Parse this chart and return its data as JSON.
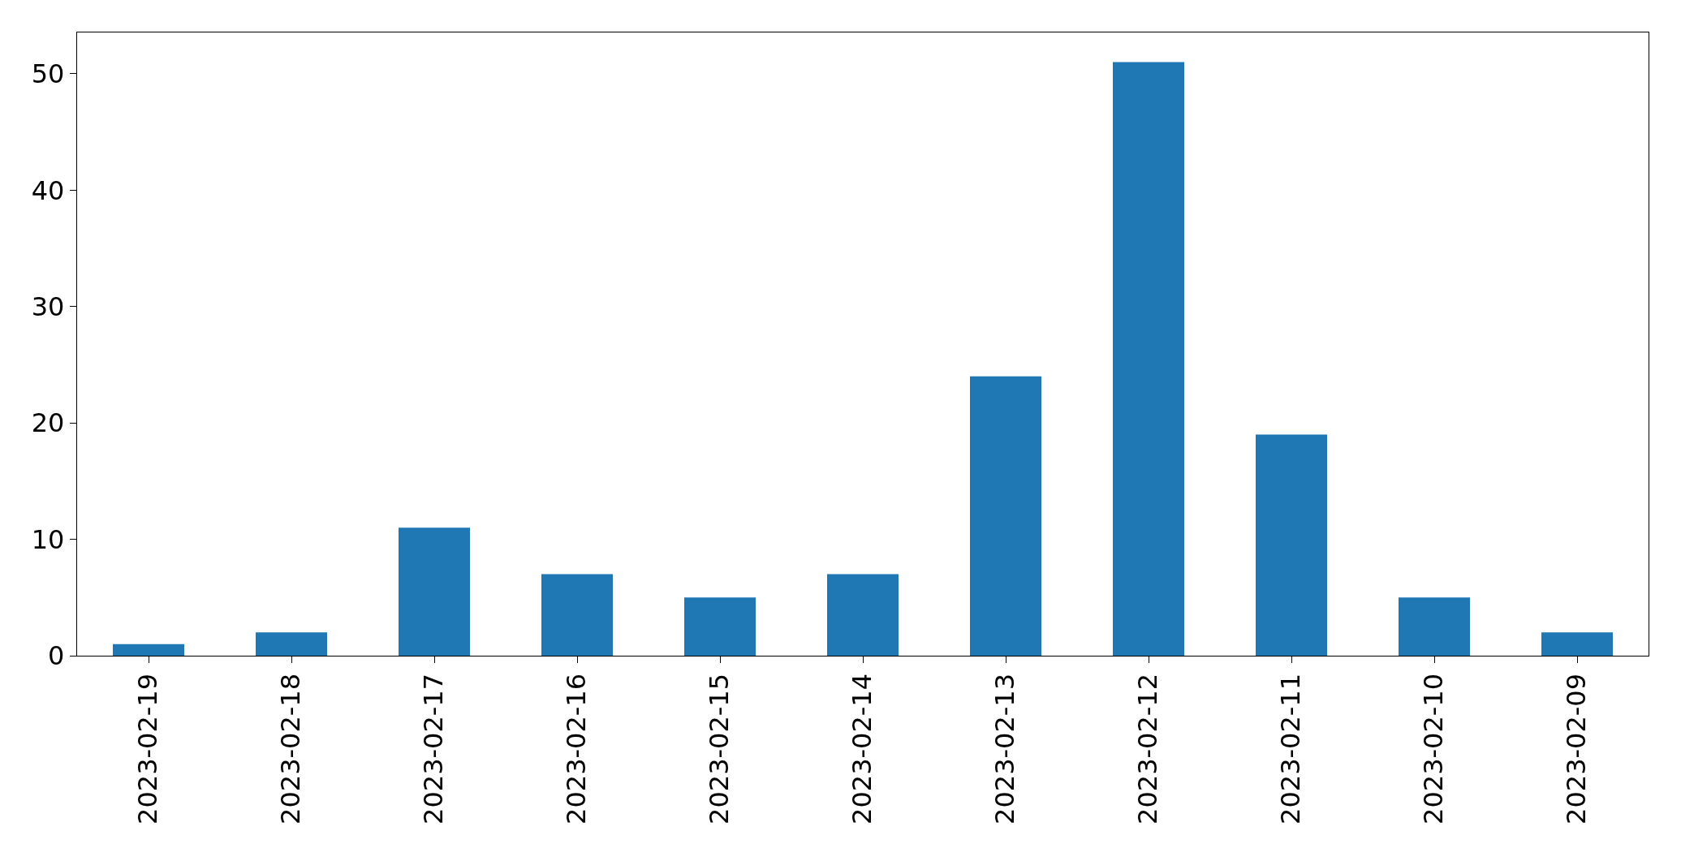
{
  "chart_data": {
    "type": "bar",
    "categories": [
      "2023-02-19",
      "2023-02-18",
      "2023-02-17",
      "2023-02-16",
      "2023-02-15",
      "2023-02-14",
      "2023-02-13",
      "2023-02-12",
      "2023-02-11",
      "2023-02-10",
      "2023-02-09"
    ],
    "values": [
      1,
      2,
      11,
      7,
      5,
      7,
      24,
      51,
      19,
      5,
      2
    ],
    "color": "#1f77b4",
    "ylim": [
      0,
      53.55
    ],
    "yticks": [
      0,
      10,
      20,
      30,
      40,
      50
    ]
  }
}
